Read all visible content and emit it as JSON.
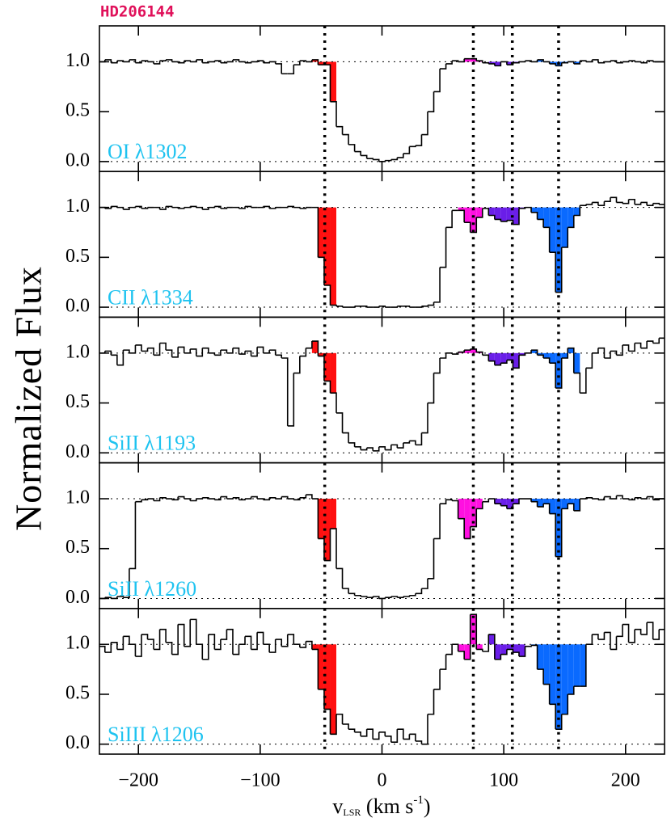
{
  "chart_data": [
    {
      "type": "step",
      "title": "HD206144",
      "label": "OI λ1302",
      "x": [
        -230,
        -225,
        -220,
        -215,
        -210,
        -205,
        -200,
        -195,
        -190,
        -185,
        -180,
        -175,
        -170,
        -165,
        -160,
        -155,
        -150,
        -145,
        -140,
        -135,
        -130,
        -125,
        -120,
        -115,
        -110,
        -105,
        -100,
        -95,
        -90,
        -85,
        -80,
        -75,
        -70,
        -65,
        -60,
        -55,
        -50,
        -45,
        -40,
        -35,
        -30,
        -25,
        -20,
        -15,
        -10,
        -5,
        0,
        5,
        10,
        15,
        20,
        25,
        30,
        35,
        40,
        45,
        50,
        55,
        60,
        65,
        70,
        75,
        80,
        85,
        90,
        95,
        100,
        105,
        110,
        115,
        120,
        125,
        130,
        135,
        140,
        145,
        150,
        155,
        160,
        165,
        170,
        175,
        180,
        185,
        190,
        195,
        200,
        205,
        210,
        215,
        220,
        225,
        230
      ],
      "values": [
        1.0,
        1.02,
        0.99,
        1.01,
        1.0,
        1.02,
        0.99,
        1.01,
        1.0,
        0.98,
        1.01,
        1.02,
        1.0,
        0.99,
        1.01,
        1.0,
        1.02,
        0.99,
        1.0,
        1.01,
        0.99,
        1.0,
        1.02,
        1.0,
        0.99,
        1.0,
        1.01,
        0.99,
        1.0,
        0.98,
        0.88,
        0.88,
        0.97,
        1.01,
        1.0,
        1.02,
        0.97,
        0.97,
        0.6,
        0.35,
        0.27,
        0.17,
        0.1,
        0.06,
        0.03,
        0.02,
        0.0,
        0.01,
        0.02,
        0.04,
        0.08,
        0.15,
        0.16,
        0.27,
        0.5,
        0.7,
        0.93,
        0.98,
        1.01,
        1.0,
        1.03,
        1.03,
        1.01,
        0.99,
        0.98,
        0.96,
        1.0,
        0.97,
        0.99,
        1.0,
        1.01,
        1.0,
        1.02,
        1.0,
        0.98,
        0.96,
        0.99,
        1.0,
        0.98,
        1.01,
        1.0,
        1.02,
        0.99,
        1.0,
        1.01,
        0.99,
        1.0,
        1.01,
        1.0,
        0.99,
        1.01,
        1.0,
        1.0
      ],
      "color": "#000000",
      "components": [
        {
          "range": [
            -55,
            -40
          ],
          "color": "#ff1010"
        },
        {
          "range": [
            65,
            80
          ],
          "color": "#ff10e0"
        },
        {
          "range": [
            90,
            115
          ],
          "color": "#6a1ee8"
        },
        {
          "range": [
            125,
            160
          ],
          "color": "#0a6aff"
        }
      ],
      "vlines": [
        -47,
        75,
        107,
        145
      ],
      "hlines": [
        0,
        1
      ],
      "xlim": [
        -232,
        232
      ],
      "ylim": [
        -0.1,
        1.36
      ],
      "xticks": [
        -200,
        -100,
        0,
        100,
        200
      ],
      "yticks": [
        {
          "value": 0,
          "label": "0.0"
        },
        {
          "value": 0.5,
          "label": "0.5"
        },
        {
          "value": 1,
          "label": "1.0"
        }
      ]
    },
    {
      "type": "step",
      "label": "CII λ1334",
      "x": [
        -230,
        -225,
        -220,
        -215,
        -210,
        -205,
        -200,
        -195,
        -190,
        -185,
        -180,
        -175,
        -170,
        -165,
        -160,
        -155,
        -150,
        -145,
        -140,
        -135,
        -130,
        -125,
        -120,
        -115,
        -110,
        -105,
        -100,
        -95,
        -90,
        -85,
        -80,
        -75,
        -70,
        -65,
        -60,
        -55,
        -50,
        -45,
        -40,
        -35,
        -30,
        -25,
        -20,
        -15,
        -10,
        -5,
        0,
        5,
        10,
        15,
        20,
        25,
        30,
        35,
        40,
        45,
        50,
        55,
        60,
        65,
        70,
        75,
        80,
        85,
        90,
        95,
        100,
        105,
        110,
        115,
        120,
        125,
        130,
        135,
        140,
        145,
        150,
        155,
        160,
        165,
        170,
        175,
        180,
        185,
        190,
        195,
        200,
        205,
        210,
        215,
        220,
        225,
        230
      ],
      "values": [
        1.0,
        0.99,
        1.01,
        1.0,
        0.98,
        1.0,
        1.01,
        0.99,
        1.0,
        1.0,
        0.98,
        1.01,
        1.0,
        0.99,
        1.0,
        1.01,
        1.0,
        0.98,
        1.0,
        1.01,
        0.99,
        1.0,
        1.0,
        0.99,
        1.01,
        1.0,
        1.0,
        1.01,
        0.99,
        1.0,
        1.0,
        1.01,
        1.0,
        0.99,
        1.0,
        1.0,
        0.5,
        0.22,
        0.02,
        0.01,
        0.0,
        0.0,
        0.01,
        0.01,
        0.0,
        0.0,
        0.01,
        0.0,
        0.0,
        0.01,
        0.01,
        0.0,
        0.0,
        0.01,
        0.02,
        0.05,
        0.4,
        0.8,
        0.97,
        0.97,
        0.85,
        0.75,
        0.9,
        0.99,
        0.92,
        0.88,
        0.86,
        0.87,
        0.83,
        0.99,
        1.0,
        0.95,
        0.88,
        0.8,
        0.55,
        0.15,
        0.6,
        0.8,
        0.92,
        1.02,
        1.03,
        1.05,
        1.02,
        1.06,
        1.1,
        1.05,
        1.04,
        1.08,
        1.03,
        1.05,
        1.02,
        1.04,
        1.03
      ],
      "color": "#000000",
      "components": [
        {
          "range": [
            -55,
            -40
          ],
          "color": "#ff1010"
        },
        {
          "range": [
            65,
            80
          ],
          "color": "#ff10e0"
        },
        {
          "range": [
            90,
            115
          ],
          "color": "#6a1ee8"
        },
        {
          "range": [
            125,
            160
          ],
          "color": "#0a6aff"
        }
      ],
      "vlines": [
        -47,
        75,
        107,
        145
      ],
      "hlines": [
        0,
        1
      ],
      "xlim": [
        -232,
        232
      ],
      "ylim": [
        -0.1,
        1.36
      ],
      "xticks": [
        -200,
        -100,
        0,
        100,
        200
      ],
      "yticks": [
        {
          "value": 0,
          "label": "0.0"
        },
        {
          "value": 0.5,
          "label": "0.5"
        },
        {
          "value": 1,
          "label": "1.0"
        }
      ]
    },
    {
      "type": "step",
      "label": "SiII λ1193",
      "ylabel": "Normalized Flux",
      "x": [
        -230,
        -225,
        -220,
        -215,
        -210,
        -205,
        -200,
        -195,
        -190,
        -185,
        -180,
        -175,
        -170,
        -165,
        -160,
        -155,
        -150,
        -145,
        -140,
        -135,
        -130,
        -125,
        -120,
        -115,
        -110,
        -105,
        -100,
        -95,
        -90,
        -85,
        -80,
        -75,
        -70,
        -65,
        -60,
        -55,
        -50,
        -45,
        -40,
        -35,
        -30,
        -25,
        -20,
        -15,
        -10,
        -5,
        0,
        5,
        10,
        15,
        20,
        25,
        30,
        35,
        40,
        45,
        50,
        55,
        60,
        65,
        70,
        75,
        80,
        85,
        90,
        95,
        100,
        105,
        110,
        115,
        120,
        125,
        130,
        135,
        140,
        145,
        150,
        155,
        160,
        165,
        170,
        175,
        180,
        185,
        190,
        195,
        200,
        205,
        210,
        215,
        220,
        225,
        230
      ],
      "values": [
        1.0,
        1.02,
        0.98,
        0.88,
        1.03,
        1.0,
        1.08,
        1.02,
        1.05,
        0.98,
        1.1,
        1.03,
        0.96,
        1.06,
        1.0,
        1.04,
        0.97,
        1.05,
        1.0,
        0.98,
        1.03,
        1.0,
        1.05,
        0.99,
        1.02,
        0.97,
        1.06,
        1.0,
        1.03,
        0.98,
        0.95,
        0.27,
        0.8,
        0.97,
        1.05,
        1.12,
        0.97,
        0.72,
        0.6,
        0.4,
        0.2,
        0.1,
        0.06,
        0.03,
        0.05,
        0.02,
        0.06,
        0.03,
        0.08,
        0.05,
        0.1,
        0.12,
        0.08,
        0.2,
        0.5,
        0.8,
        0.95,
        1.0,
        0.99,
        1.01,
        1.03,
        1.04,
        1.01,
        0.98,
        0.92,
        0.88,
        0.9,
        0.93,
        0.85,
        0.98,
        1.0,
        1.03,
        0.98,
        0.95,
        0.9,
        0.65,
        0.95,
        1.05,
        0.8,
        0.6,
        0.85,
        1.0,
        1.05,
        0.95,
        1.02,
        0.98,
        1.08,
        1.02,
        1.1,
        1.05,
        1.12,
        1.1,
        1.15
      ],
      "color": "#000000",
      "components": [
        {
          "range": [
            -55,
            -40
          ],
          "color": "#ff1010"
        },
        {
          "range": [
            65,
            80
          ],
          "color": "#ff10e0"
        },
        {
          "range": [
            90,
            115
          ],
          "color": "#6a1ee8"
        },
        {
          "range": [
            125,
            160
          ],
          "color": "#0a6aff"
        }
      ],
      "vlines": [
        -47,
        75,
        107,
        145
      ],
      "hlines": [
        0,
        1
      ],
      "xlim": [
        -232,
        232
      ],
      "ylim": [
        -0.1,
        1.36
      ],
      "xticks": [
        -200,
        -100,
        0,
        100,
        200
      ],
      "yticks": [
        {
          "value": 0,
          "label": "0.0"
        },
        {
          "value": 0.5,
          "label": "0.5"
        },
        {
          "value": 1,
          "label": "1.0"
        }
      ]
    },
    {
      "type": "step",
      "label": "SiII λ1260",
      "x": [
        -230,
        -225,
        -220,
        -215,
        -210,
        -205,
        -200,
        -195,
        -190,
        -185,
        -180,
        -175,
        -170,
        -165,
        -160,
        -155,
        -150,
        -145,
        -140,
        -135,
        -130,
        -125,
        -120,
        -115,
        -110,
        -105,
        -100,
        -95,
        -90,
        -85,
        -80,
        -75,
        -70,
        -65,
        -60,
        -55,
        -50,
        -45,
        -40,
        -35,
        -30,
        -25,
        -20,
        -15,
        -10,
        -5,
        0,
        5,
        10,
        15,
        20,
        25,
        30,
        35,
        40,
        45,
        50,
        55,
        60,
        65,
        70,
        75,
        80,
        85,
        90,
        95,
        100,
        105,
        110,
        115,
        120,
        125,
        130,
        135,
        140,
        145,
        150,
        155,
        160,
        165,
        170,
        175,
        180,
        185,
        190,
        195,
        200,
        205,
        210,
        215,
        220,
        225,
        230
      ],
      "values": [
        0.0,
        0.01,
        0.0,
        0.02,
        0.01,
        0.3,
        0.97,
        0.99,
        1.0,
        0.98,
        1.01,
        1.0,
        0.99,
        1.02,
        1.0,
        0.98,
        1.0,
        1.01,
        1.0,
        0.99,
        1.02,
        1.0,
        1.01,
        0.99,
        1.0,
        1.02,
        1.0,
        0.99,
        1.01,
        1.0,
        1.02,
        1.0,
        0.99,
        1.01,
        1.04,
        1.0,
        0.6,
        0.38,
        0.7,
        0.3,
        0.1,
        0.05,
        0.03,
        0.02,
        0.01,
        0.02,
        0.0,
        0.01,
        0.02,
        0.01,
        0.02,
        0.03,
        0.05,
        0.1,
        0.2,
        0.6,
        0.95,
        0.99,
        0.98,
        0.8,
        0.6,
        0.72,
        0.9,
        0.97,
        1.0,
        0.95,
        0.93,
        0.9,
        0.95,
        1.0,
        1.0,
        0.97,
        0.92,
        0.95,
        0.85,
        0.42,
        0.9,
        0.95,
        0.88,
        1.0,
        1.01,
        1.0,
        0.99,
        1.02,
        1.0,
        1.03,
        1.0,
        0.99,
        1.01,
        1.0,
        1.02,
        0.99,
        1.0
      ],
      "color": "#000000",
      "components": [
        {
          "range": [
            -55,
            -40
          ],
          "color": "#ff1010"
        },
        {
          "range": [
            65,
            80
          ],
          "color": "#ff10e0"
        },
        {
          "range": [
            90,
            115
          ],
          "color": "#6a1ee8"
        },
        {
          "range": [
            125,
            160
          ],
          "color": "#0a6aff"
        }
      ],
      "vlines": [
        -47,
        75,
        107,
        145
      ],
      "hlines": [
        0,
        1
      ],
      "xlim": [
        -232,
        232
      ],
      "ylim": [
        -0.1,
        1.36
      ],
      "xticks": [
        -200,
        -100,
        0,
        100,
        200
      ],
      "yticks": [
        {
          "value": 0,
          "label": "0.0"
        },
        {
          "value": 0.5,
          "label": "0.5"
        },
        {
          "value": 1,
          "label": "1.0"
        }
      ]
    },
    {
      "type": "step",
      "label": "SiIII λ1206",
      "xlabel": [
        "v",
        "LSR",
        " (km s",
        "-1",
        ")"
      ],
      "x": [
        -230,
        -225,
        -220,
        -215,
        -210,
        -205,
        -200,
        -195,
        -190,
        -185,
        -180,
        -175,
        -170,
        -165,
        -160,
        -155,
        -150,
        -145,
        -140,
        -135,
        -130,
        -125,
        -120,
        -115,
        -110,
        -105,
        -100,
        -95,
        -90,
        -85,
        -80,
        -75,
        -70,
        -65,
        -60,
        -55,
        -50,
        -45,
        -40,
        -35,
        -30,
        -25,
        -20,
        -15,
        -10,
        -5,
        0,
        5,
        10,
        15,
        20,
        25,
        30,
        35,
        40,
        45,
        50,
        55,
        60,
        65,
        70,
        75,
        80,
        85,
        90,
        95,
        100,
        105,
        110,
        115,
        120,
        125,
        130,
        135,
        140,
        145,
        150,
        155,
        160,
        165,
        170,
        175,
        180,
        185,
        190,
        195,
        200,
        205,
        210,
        215,
        220,
        225,
        230
      ],
      "values": [
        0.98,
        0.92,
        1.02,
        0.95,
        1.08,
        1.0,
        0.88,
        1.1,
        1.05,
        0.95,
        1.15,
        1.02,
        0.9,
        1.2,
        0.98,
        1.25,
        1.0,
        0.85,
        1.1,
        0.95,
        1.05,
        1.15,
        0.9,
        1.0,
        1.08,
        0.95,
        1.12,
        1.0,
        0.92,
        1.05,
        0.98,
        1.1,
        1.0,
        0.97,
        1.03,
        0.95,
        0.55,
        0.35,
        0.1,
        0.3,
        0.2,
        0.15,
        0.12,
        0.08,
        0.15,
        0.05,
        0.12,
        0.08,
        0.02,
        0.15,
        0.05,
        0.1,
        0.03,
        0.0,
        0.3,
        0.55,
        0.75,
        0.9,
        1.0,
        0.93,
        0.85,
        1.3,
        0.95,
        0.93,
        1.1,
        0.85,
        0.9,
        0.95,
        0.92,
        0.88,
        0.98,
        0.99,
        0.75,
        0.6,
        0.4,
        0.15,
        0.3,
        0.5,
        0.58,
        0.58,
        1.0,
        1.1,
        1.05,
        1.12,
        0.95,
        1.08,
        1.2,
        1.02,
        1.15,
        1.1,
        1.22,
        1.05,
        1.15
      ],
      "color": "#000000",
      "components": [
        {
          "range": [
            -55,
            -40
          ],
          "color": "#ff1010"
        },
        {
          "range": [
            65,
            80
          ],
          "color": "#ff10e0"
        },
        {
          "range": [
            90,
            115
          ],
          "color": "#6a1ee8"
        },
        {
          "range": [
            125,
            165
          ],
          "color": "#0a6aff"
        }
      ],
      "vlines": [
        -47,
        75,
        107,
        145
      ],
      "hlines": [
        0,
        1
      ],
      "xlim": [
        -232,
        232
      ],
      "ylim": [
        -0.1,
        1.36
      ],
      "xticks": [
        {
          "value": -200,
          "label": "−200"
        },
        {
          "value": -100,
          "label": "−100"
        },
        0,
        100,
        200
      ],
      "yticks": [
        {
          "value": 0,
          "label": "0.0"
        },
        {
          "value": 0.5,
          "label": "0.5"
        },
        {
          "value": 1,
          "label": "1.0"
        }
      ]
    }
  ]
}
